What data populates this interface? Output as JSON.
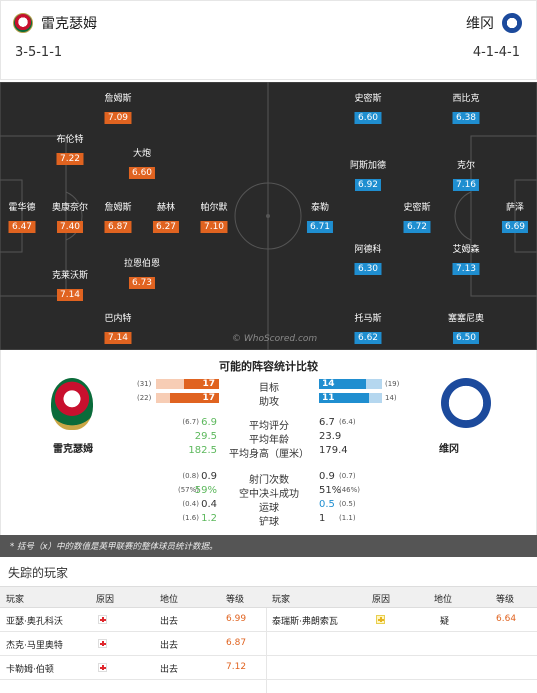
{
  "header": {
    "home": {
      "name": "雷克瑟姆",
      "formation": "3-5-1-1"
    },
    "away": {
      "name": "维冈",
      "formation": "4-1-4-1"
    }
  },
  "pitch": {
    "watermark": "© WhoScored.com",
    "home_players": [
      {
        "name": "霍华德",
        "rating": "6.47"
      },
      {
        "name": "布伦特",
        "rating": "7.22"
      },
      {
        "name": "奥康奈尔",
        "rating": "7.40"
      },
      {
        "name": "克莱沃斯",
        "rating": "7.14"
      },
      {
        "name": "詹姆斯",
        "rating": "7.09"
      },
      {
        "name": "大炮",
        "rating": "6.60"
      },
      {
        "name": "詹姆斯",
        "rating": "6.87"
      },
      {
        "name": "赫林",
        "rating": "6.27"
      },
      {
        "name": "拉恩伯恩",
        "rating": "6.73"
      },
      {
        "name": "帕尔默",
        "rating": "7.10"
      },
      {
        "name": "巴内特",
        "rating": "7.14"
      }
    ],
    "away_players": [
      {
        "name": "史密斯",
        "rating": "6.60"
      },
      {
        "name": "西比克",
        "rating": "6.38"
      },
      {
        "name": "阿斯加德",
        "rating": "6.92"
      },
      {
        "name": "克尔",
        "rating": "7.16"
      },
      {
        "name": "泰勒",
        "rating": "6.71"
      },
      {
        "name": "史密斯",
        "rating": "6.72"
      },
      {
        "name": "萨泽",
        "rating": "6.69"
      },
      {
        "name": "阿德科",
        "rating": "6.30"
      },
      {
        "name": "艾姆森",
        "rating": "7.13"
      },
      {
        "name": "托马斯",
        "rating": "6.62"
      },
      {
        "name": "塞塞尼奥",
        "rating": "6.50"
      }
    ]
  },
  "stats": {
    "title": "可能的阵容统计比较",
    "home_label": "雷克瑟姆",
    "away_label": "维冈",
    "bars": [
      {
        "label": "目标",
        "home": "17",
        "home_par": "(31)",
        "home_frac": 0.55,
        "away": "14",
        "away_par": "(19)",
        "away_frac": 0.74
      },
      {
        "label": "助攻",
        "home": "17",
        "home_par": "(22)",
        "home_frac": 0.77,
        "away": "11",
        "away_par": "14)",
        "away_frac": 0.79
      }
    ],
    "rows1": [
      {
        "label": "平均评分",
        "home": "6.9",
        "home_par": "(6.7)",
        "away": "6.7",
        "away_par": "(6.4)",
        "win": "home"
      },
      {
        "label": "平均年龄",
        "home": "29.5",
        "home_par": "",
        "away": "23.9",
        "away_par": "",
        "win": "home"
      },
      {
        "label": "平均身高（厘米）",
        "home": "182.5",
        "home_par": "",
        "away": "179.4",
        "away_par": "",
        "win": "home"
      }
    ],
    "rows2": [
      {
        "label": "射门次数",
        "home": "0.9",
        "home_par": "(0.8)",
        "away": "0.9",
        "away_par": "(0.7)",
        "win": ""
      },
      {
        "label": "空中决斗成功",
        "home": "59%",
        "home_par": "(57%)",
        "away": "51%",
        "away_par": "(46%)",
        "win": "home"
      },
      {
        "label": "运球",
        "home": "0.4",
        "home_par": "(0.4)",
        "away": "0.5",
        "away_par": "(0.5)",
        "win": "away"
      },
      {
        "label": "铲球",
        "home": "1.2",
        "home_par": "(1.6)",
        "away": "1",
        "away_par": "(1.1)",
        "win": "home"
      }
    ],
    "note": "* 括号（x）中的数值是英甲联赛的整体球员统计数据。"
  },
  "missing": {
    "title": "失踪的玩家",
    "headers": {
      "player": "玩家",
      "reason": "原因",
      "status": "地位",
      "rating": "等级"
    },
    "home": [
      {
        "player": "亚瑟·奥孔科沃",
        "reason_icon": "injury-icon",
        "status": "出去",
        "rating": "6.99"
      },
      {
        "player": "杰克·马里奥特",
        "reason_icon": "injury-icon",
        "status": "出去",
        "rating": "6.87"
      },
      {
        "player": "卡勒姆·伯顿",
        "reason_icon": "injury-icon",
        "status": "出去",
        "rating": "7.12"
      }
    ],
    "away": [
      {
        "player": "泰瑞斯·弗朗索瓦",
        "reason_icon": "doubtful-icon",
        "status": "疑",
        "rating": "6.64"
      }
    ]
  }
}
